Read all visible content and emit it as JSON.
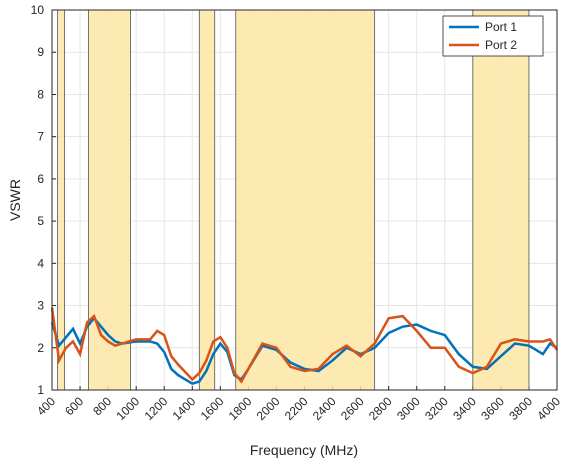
{
  "chart_data": {
    "type": "line",
    "x_label": "Frequency (MHz)",
    "y_label": "VSWR",
    "x": [
      400,
      450,
      500,
      550,
      600,
      650,
      700,
      750,
      800,
      850,
      900,
      1000,
      1100,
      1150,
      1200,
      1250,
      1300,
      1400,
      1450,
      1500,
      1550,
      1600,
      1650,
      1700,
      1750,
      1800,
      1900,
      2000,
      2100,
      2200,
      2300,
      2400,
      2500,
      2600,
      2700,
      2800,
      2900,
      3000,
      3100,
      3200,
      3300,
      3400,
      3500,
      3600,
      3700,
      3800,
      3900,
      3950,
      4000
    ],
    "series": [
      {
        "name": "Port 1",
        "color": "#0072bd",
        "values": [
          2.6,
          2.05,
          2.25,
          2.45,
          2.1,
          2.5,
          2.7,
          2.5,
          2.3,
          2.15,
          2.1,
          2.15,
          2.15,
          2.1,
          1.9,
          1.5,
          1.35,
          1.15,
          1.2,
          1.45,
          1.85,
          2.1,
          1.9,
          1.35,
          1.25,
          1.5,
          2.05,
          1.95,
          1.65,
          1.5,
          1.45,
          1.7,
          2.0,
          1.85,
          2.0,
          2.35,
          2.5,
          2.55,
          2.4,
          2.3,
          1.85,
          1.55,
          1.5,
          1.8,
          2.1,
          2.05,
          1.85,
          2.1,
          2.0
        ]
      },
      {
        "name": "Port 2",
        "color": "#d95319",
        "values": [
          2.95,
          1.7,
          2.0,
          2.15,
          1.85,
          2.6,
          2.75,
          2.3,
          2.15,
          2.05,
          2.1,
          2.2,
          2.2,
          2.4,
          2.3,
          1.8,
          1.6,
          1.25,
          1.4,
          1.7,
          2.15,
          2.25,
          2.0,
          1.4,
          1.2,
          1.5,
          2.1,
          2.0,
          1.55,
          1.45,
          1.5,
          1.85,
          2.05,
          1.8,
          2.1,
          2.7,
          2.75,
          2.4,
          2.0,
          2.0,
          1.55,
          1.4,
          1.55,
          2.1,
          2.2,
          2.15,
          2.15,
          2.2,
          1.95
        ]
      }
    ],
    "bands": [
      [
        440,
        490
      ],
      [
        660,
        960
      ],
      [
        1450,
        1560
      ],
      [
        1710,
        2700
      ],
      [
        3400,
        3800
      ]
    ],
    "band_color": "#fde6a6",
    "xlim": [
      400,
      4000
    ],
    "xticks": [
      400,
      600,
      800,
      1000,
      1200,
      1400,
      1600,
      1800,
      2000,
      2200,
      2400,
      2600,
      2800,
      3000,
      3200,
      3400,
      3600,
      3800,
      4000
    ],
    "ylim": [
      1,
      10
    ],
    "yticks": [
      1,
      2,
      3,
      4,
      5,
      6,
      7,
      8,
      9,
      10
    ],
    "grid": true,
    "legend": "northeast"
  }
}
